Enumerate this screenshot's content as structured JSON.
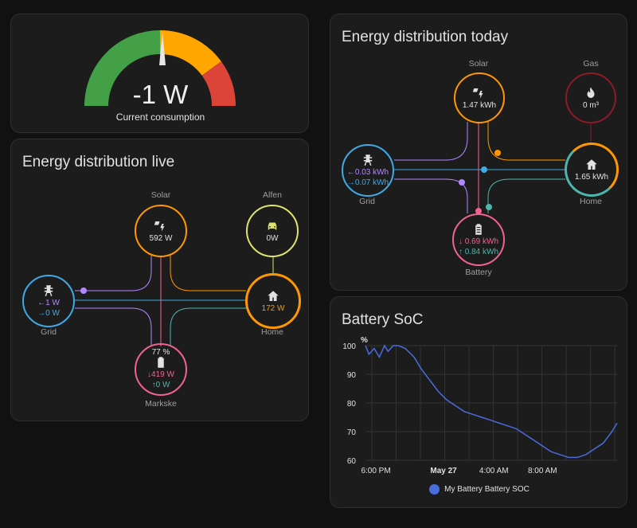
{
  "colors": {
    "grid": "#3fa9e6",
    "solar": "#ff9800",
    "gas": "#8e1a27",
    "home": "#ff9800",
    "battery": "#f06292",
    "ev": "#dde36b",
    "return": "#b388ff",
    "battery_out": "#4db6ac",
    "gauge_green": "#43a047",
    "gauge_yellow": "#ffa600",
    "gauge_red": "#db4437",
    "chart_line": "#4a6cdf"
  },
  "gauge": {
    "value": "-1 W",
    "label": "Current consumption"
  },
  "live": {
    "title": "Energy distribution live",
    "solar": {
      "label": "Solar",
      "value": "592 W",
      "icon": "solar-power-icon"
    },
    "ev": {
      "label": "Alfen",
      "value": "0W",
      "icon": "car-icon"
    },
    "grid": {
      "label": "Grid",
      "in": "←1 W",
      "out": "→0 W",
      "icon": "transmission-tower-icon"
    },
    "home": {
      "label": "Home",
      "value": "172 W",
      "icon": "home-icon"
    },
    "battery": {
      "label": "Markske",
      "soc": "77 %",
      "in": "↓419 W",
      "out": "↑0 W",
      "icon": "battery-icon"
    }
  },
  "today": {
    "title": "Energy distribution today",
    "solar": {
      "label": "Solar",
      "value": "1.47 kWh"
    },
    "gas": {
      "label": "Gas",
      "value": "0 m³"
    },
    "grid": {
      "label": "Grid",
      "in": "←0.03 kWh",
      "out": "→0.07 kWh"
    },
    "home": {
      "label": "Home",
      "value": "1.65 kWh"
    },
    "battery": {
      "label": "Battery",
      "in": "↓ 0.69 kWh",
      "out": "↑ 0.84 kWh"
    }
  },
  "soc": {
    "title": "Battery SoC",
    "unit": "%",
    "legend": "My Battery Battery SOC",
    "y_ticks": [
      "100",
      "90",
      "80",
      "70",
      "60"
    ],
    "x_ticks": [
      "6:00 PM",
      "May 27",
      "4:00 AM",
      "8:00 AM"
    ]
  },
  "chart_data": {
    "type": "line",
    "title": "Battery SoC",
    "ylabel": "%",
    "ylim": [
      60,
      100
    ],
    "x_ticks": [
      "6:00 PM",
      "May 27",
      "4:00 AM",
      "8:00 AM"
    ],
    "series": [
      {
        "name": "My Battery Battery SOC",
        "x_hours": [
          0.0,
          0.2,
          0.5,
          0.8,
          1.1,
          1.3,
          1.6,
          1.9,
          2.3,
          2.8,
          3.2,
          3.7,
          4.2,
          4.7,
          5.2,
          5.7,
          6.2,
          6.7,
          7.2,
          7.7,
          8.2,
          8.7,
          9.2,
          9.7,
          10.2,
          10.7,
          11.2,
          11.7,
          12.2,
          12.7,
          13.2,
          13.7,
          14.2,
          14.5
        ],
        "values": [
          100,
          97,
          99,
          96,
          100,
          98,
          100,
          100,
          99,
          96,
          92,
          88,
          84,
          81,
          79,
          77,
          76,
          75,
          74,
          73,
          72,
          71,
          69,
          67,
          65,
          63,
          62,
          61,
          61,
          62,
          64,
          66,
          70,
          73
        ]
      }
    ]
  }
}
